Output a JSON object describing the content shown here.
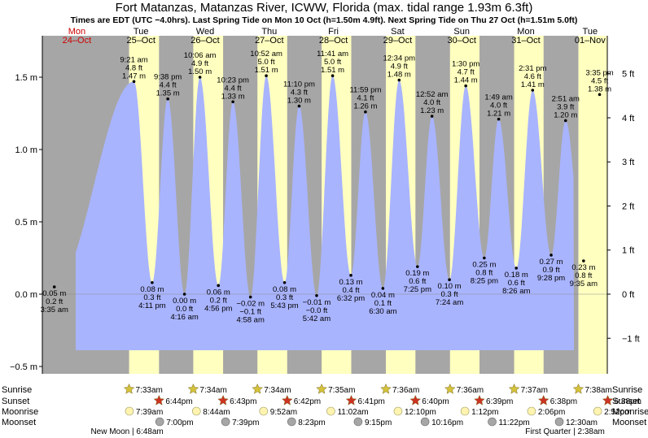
{
  "title": "Fort Matanzas, Matanzas River, ICWW, Florida (max. tidal range 1.93m 6.3ft)",
  "subtitle": "Times are EDT (UTC −4.0hrs). Last Spring Tide on Mon 10 Oct (h=1.50m 4.9ft). Next Spring Tide on Thu 27 Oct (h=1.51m 5.0ft)",
  "colors": {
    "water": "#a9b4ff",
    "day": "#ffffc0",
    "night": "#a6a6a6",
    "sun_star": "#d4c23a",
    "sunset_star": "#cc3322",
    "moonrise": "#fff3b0",
    "moonset": "#a6a6a6",
    "weekend": "#cc0000"
  },
  "days": [
    {
      "wd": "Mon",
      "date": "24–Oct",
      "red": true
    },
    {
      "wd": "Tue",
      "date": "25–Oct",
      "red": false
    },
    {
      "wd": "Wed",
      "date": "26–Oct",
      "red": false
    },
    {
      "wd": "Thu",
      "date": "27–Oct",
      "red": false
    },
    {
      "wd": "Fri",
      "date": "28–Oct",
      "red": false
    },
    {
      "wd": "Sat",
      "date": "29–Oct",
      "red": false
    },
    {
      "wd": "Sun",
      "date": "30–Oct",
      "red": false
    },
    {
      "wd": "Mon",
      "date": "31–Oct",
      "red": false
    },
    {
      "wd": "Tue",
      "date": "01–Nov",
      "red": false
    }
  ],
  "chart_data": {
    "type": "area",
    "title": "Fort Matanzas, Matanzas River, ICWW, Florida (max. tidal range 1.93m 6.3ft)",
    "y_left_unit": "m",
    "y_right_unit": "ft",
    "y_left_ticks": [
      "1.5 m",
      "1.0 m",
      "0.5 m",
      "0.0 m",
      "−0.5 m"
    ],
    "y_left_values": [
      1.5,
      1.0,
      0.5,
      0.0,
      -0.5
    ],
    "y_right_ticks": [
      "5 ft",
      "4 ft",
      "3 ft",
      "2 ft",
      "1 ft",
      "0 ft",
      "−1 ft"
    ],
    "y_right_values": [
      5,
      4,
      3,
      2,
      1,
      0,
      -1
    ],
    "ylim_m": [
      -0.62,
      1.78
    ],
    "x_range_days": [
      0,
      9.4
    ],
    "tides": [
      {
        "day": 0.149,
        "type": "low",
        "time": "3:35 am",
        "m": "0.05 m",
        "ft": "0.2 ft",
        "h": 0.05
      },
      {
        "day": 1.39,
        "type": "high",
        "time": "9:21 am",
        "m": "1.47 m",
        "ft": "4.8 ft",
        "h": 1.47
      },
      {
        "day": 1.674,
        "type": "low",
        "time": "4:11 pm",
        "m": "0.08 m",
        "ft": "0.3 ft",
        "h": 0.08
      },
      {
        "day": 1.918,
        "type": "high",
        "time": "9:38 pm",
        "m": "1.35 m",
        "ft": "4.4 ft",
        "h": 1.35
      },
      {
        "day": 2.178,
        "type": "low",
        "time": "4:16 am",
        "m": "0.00 m",
        "ft": "0.0 ft",
        "h": 0.0
      },
      {
        "day": 2.419,
        "type": "high",
        "time": "10:06 am",
        "m": "1.50 m",
        "ft": "4.9 ft",
        "h": 1.5
      },
      {
        "day": 2.706,
        "type": "low",
        "time": "4:56 pm",
        "m": "0.06 m",
        "ft": "0.2 ft",
        "h": 0.06
      },
      {
        "day": 2.933,
        "type": "high",
        "time": "10:23 pm",
        "m": "1.33 m",
        "ft": "4.4 ft",
        "h": 1.33
      },
      {
        "day": 3.207,
        "type": "low",
        "time": "4:58 am",
        "m": "−0.02 m",
        "ft": "−0.1 ft",
        "h": -0.02
      },
      {
        "day": 3.453,
        "type": "high",
        "time": "10:52 am",
        "m": "1.51 m",
        "ft": "5.0 ft",
        "h": 1.51
      },
      {
        "day": 3.738,
        "type": "low",
        "time": "5:43 pm",
        "m": "0.08 m",
        "ft": "0.3 ft",
        "h": 0.08
      },
      {
        "day": 3.965,
        "type": "high",
        "time": "11:10 pm",
        "m": "1.30 m",
        "ft": "4.3 ft",
        "h": 1.3
      },
      {
        "day": 4.238,
        "type": "low",
        "time": "5:42 am",
        "m": "−0.01 m",
        "ft": "−0.0 ft",
        "h": -0.01
      },
      {
        "day": 4.487,
        "type": "high",
        "time": "11:41 am",
        "m": "1.51 m",
        "ft": "5.0 ft",
        "h": 1.51
      },
      {
        "day": 4.772,
        "type": "low",
        "time": "6:32 pm",
        "m": "0.13 m",
        "ft": "0.4 ft",
        "h": 0.13
      },
      {
        "day": 4.999,
        "type": "high",
        "time": "11:59 pm",
        "m": "1.26 m",
        "ft": "4.1 ft",
        "h": 1.26
      },
      {
        "day": 5.271,
        "type": "low",
        "time": "6:30 am",
        "m": "0.04 m",
        "ft": "0.1 ft",
        "h": 0.04
      },
      {
        "day": 5.524,
        "type": "high",
        "time": "12:34 pm",
        "m": "1.48 m",
        "ft": "4.9 ft",
        "h": 1.48
      },
      {
        "day": 5.81,
        "type": "low",
        "time": "7:25 pm",
        "m": "0.19 m",
        "ft": "0.6 ft",
        "h": 0.19
      },
      {
        "day": 6.036,
        "type": "high",
        "time": "12:52 am",
        "m": "1.23 m",
        "ft": "4.0 ft",
        "h": 1.23
      },
      {
        "day": 6.308,
        "type": "low",
        "time": "7:24 am",
        "m": "0.10 m",
        "ft": "0.3 ft",
        "h": 0.1
      },
      {
        "day": 6.563,
        "type": "high",
        "time": "1:30 pm",
        "m": "1.44 m",
        "ft": "4.7 ft",
        "h": 1.44
      },
      {
        "day": 6.851,
        "type": "low",
        "time": "8:25 pm",
        "m": "0.25 m",
        "ft": "0.8 ft",
        "h": 0.25
      },
      {
        "day": 7.076,
        "type": "high",
        "time": "1:49 am",
        "m": "1.21 m",
        "ft": "4.0 ft",
        "h": 1.21
      },
      {
        "day": 7.351,
        "type": "low",
        "time": "8:26 am",
        "m": "0.18 m",
        "ft": "0.6 ft",
        "h": 0.18
      },
      {
        "day": 7.605,
        "type": "high",
        "time": "2:31 pm",
        "m": "1.41 m",
        "ft": "4.6 ft",
        "h": 1.41
      },
      {
        "day": 7.894,
        "type": "low",
        "time": "9:28 pm",
        "m": "0.27 m",
        "ft": "0.9 ft",
        "h": 0.27
      },
      {
        "day": 8.119,
        "type": "high",
        "time": "2:51 am",
        "m": "1.20 m",
        "ft": "3.9 ft",
        "h": 1.2
      },
      {
        "day": 8.399,
        "type": "low",
        "time": "9:35 am",
        "m": "0.23 m",
        "ft": "0.8 ft",
        "h": 0.23
      },
      {
        "day": 8.649,
        "type": "high",
        "time": "3:35 pm",
        "m": "1.38 m",
        "ft": "4.5 ft",
        "h": 1.38
      }
    ]
  },
  "astro": {
    "row_labels": {
      "sunrise": "Sunrise",
      "sunset": "Sunset",
      "moonrise": "Moonrise",
      "moonset": "Moonset"
    },
    "sunrise": [
      {
        "day": 1.314,
        "time": "7:33am"
      },
      {
        "day": 2.315,
        "time": "7:34am"
      },
      {
        "day": 3.315,
        "time": "7:34am"
      },
      {
        "day": 4.316,
        "time": "7:35am"
      },
      {
        "day": 5.317,
        "time": "7:36am"
      },
      {
        "day": 6.317,
        "time": "7:36am"
      },
      {
        "day": 7.317,
        "time": "7:37am"
      },
      {
        "day": 8.318,
        "time": "7:38am"
      }
    ],
    "sunset": [
      {
        "day": 1.781,
        "time": "6:44pm"
      },
      {
        "day": 2.78,
        "time": "6:43pm"
      },
      {
        "day": 3.779,
        "time": "6:42pm"
      },
      {
        "day": 4.778,
        "time": "6:41pm"
      },
      {
        "day": 5.778,
        "time": "6:40pm"
      },
      {
        "day": 6.777,
        "time": "6:39pm"
      },
      {
        "day": 7.776,
        "time": "6:38pm"
      },
      {
        "day": 8.776,
        "time": "6:38pm"
      }
    ],
    "moonrise": [
      {
        "day": 1.319,
        "time": "7:39am"
      },
      {
        "day": 2.364,
        "time": "8:44am"
      },
      {
        "day": 3.411,
        "time": "9:52am"
      },
      {
        "day": 4.46,
        "time": "11:02am"
      },
      {
        "day": 5.507,
        "time": "12:10pm"
      },
      {
        "day": 6.55,
        "time": "1:12pm"
      },
      {
        "day": 7.588,
        "time": "2:06pm"
      },
      {
        "day": 8.619,
        "time": "2:52pm"
      }
    ],
    "moonset": [
      {
        "day": 1.792,
        "time": "7:00pm"
      },
      {
        "day": 2.819,
        "time": "7:39pm"
      },
      {
        "day": 3.849,
        "time": "8:23pm"
      },
      {
        "day": 4.885,
        "time": "9:15pm"
      },
      {
        "day": 5.928,
        "time": "10:16pm"
      },
      {
        "day": 6.974,
        "time": "11:22pm"
      },
      {
        "day": 8.021,
        "time": "12:30am"
      }
    ],
    "moon_phases": [
      {
        "text": "New Moon | 6:48am",
        "day": 1.283
      },
      {
        "text": "First Quarter | 2:38am",
        "day": 8.11
      }
    ]
  }
}
